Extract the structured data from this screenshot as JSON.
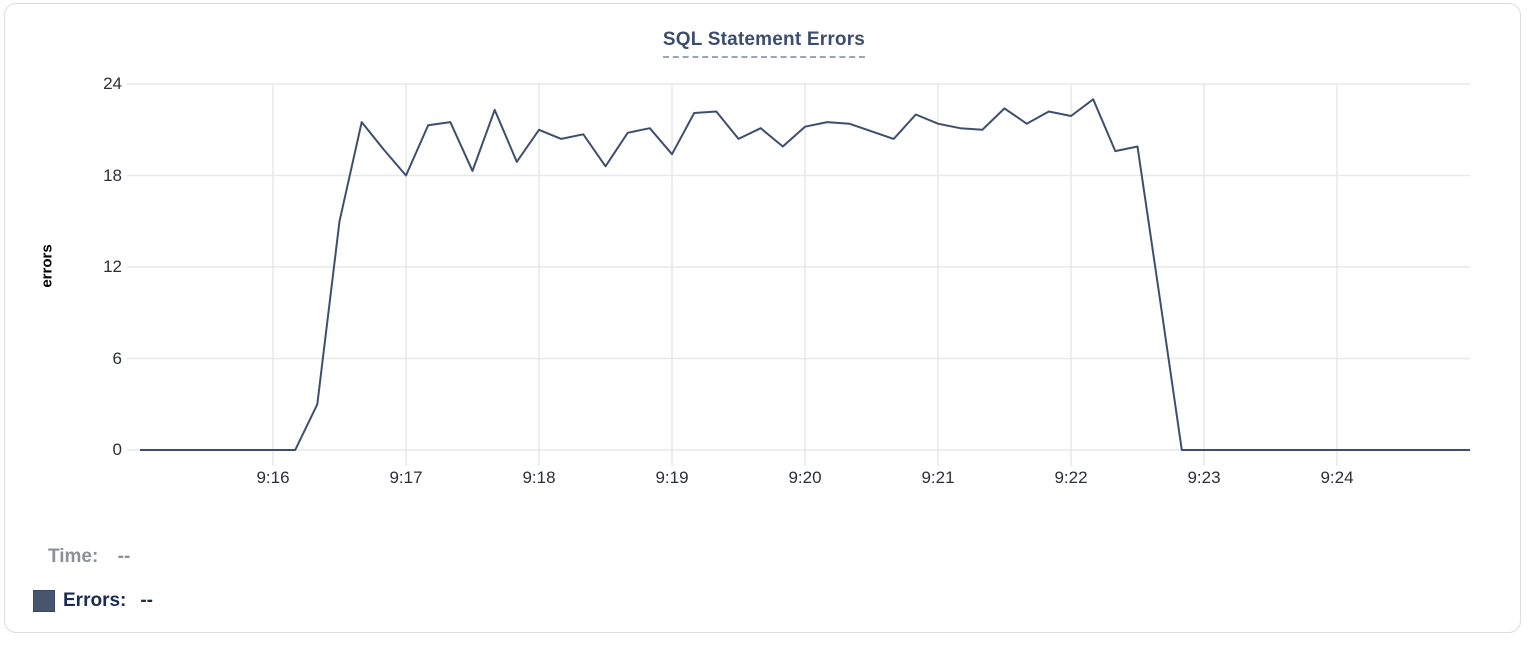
{
  "colors": {
    "card_border": "#dcdcde",
    "title": "#3c4d6e",
    "title_underline": "#97a5c2",
    "line": "#3e4f6e",
    "grid": "#e7e8ea",
    "tick_text": "#2b2f36",
    "swatch": "#47566e",
    "legend_time": "#8b9198",
    "legend_errors": "#1c2b52"
  },
  "legend": {
    "time_label": "Time:",
    "time_value": "--",
    "errors_label": "Errors:",
    "errors_value": "--"
  },
  "chart_data": {
    "type": "line",
    "title": "SQL Statement Errors",
    "xlabel": "",
    "ylabel": "errors",
    "ylim": [
      0,
      24
    ],
    "y_ticks": [
      0,
      6,
      12,
      18,
      24
    ],
    "x_tick_labels": [
      "9:16",
      "9:17",
      "9:18",
      "9:19",
      "9:20",
      "9:21",
      "9:22",
      "9:23",
      "9:24"
    ],
    "x_domain": [
      "9:15:00",
      "9:25:00"
    ],
    "sample_interval_seconds": 10,
    "grid": true,
    "legend_position": "bottom-left",
    "series": [
      {
        "name": "Errors",
        "times": [
          "9:15:00",
          "9:15:10",
          "9:15:20",
          "9:15:30",
          "9:15:40",
          "9:15:50",
          "9:16:00",
          "9:16:10",
          "9:16:20",
          "9:16:30",
          "9:16:40",
          "9:16:50",
          "9:17:00",
          "9:17:10",
          "9:17:20",
          "9:17:30",
          "9:17:40",
          "9:17:50",
          "9:18:00",
          "9:18:10",
          "9:18:20",
          "9:18:30",
          "9:18:40",
          "9:18:50",
          "9:19:00",
          "9:19:10",
          "9:19:20",
          "9:19:30",
          "9:19:40",
          "9:19:50",
          "9:20:00",
          "9:20:10",
          "9:20:20",
          "9:20:30",
          "9:20:40",
          "9:20:50",
          "9:21:00",
          "9:21:10",
          "9:21:20",
          "9:21:30",
          "9:21:40",
          "9:21:50",
          "9:22:00",
          "9:22:10",
          "9:22:20",
          "9:22:30",
          "9:22:40",
          "9:22:50",
          "9:23:00",
          "9:23:10",
          "9:23:20",
          "9:23:30",
          "9:23:40",
          "9:23:50",
          "9:24:00",
          "9:24:10",
          "9:24:20",
          "9:24:30",
          "9:24:40",
          "9:24:50",
          "9:25:00"
        ],
        "values": [
          0,
          0,
          0,
          0,
          0,
          0,
          0,
          0,
          3,
          15,
          21.5,
          19.7,
          18,
          21.3,
          21.5,
          18.3,
          22.3,
          18.9,
          21,
          20.4,
          20.7,
          18.6,
          20.8,
          21.1,
          19.4,
          22.1,
          22.2,
          20.4,
          21.1,
          19.9,
          21.2,
          21.5,
          21.4,
          20.9,
          20.4,
          22,
          21.4,
          21.1,
          21,
          22.4,
          21.4,
          22.2,
          21.9,
          23,
          19.6,
          19.9,
          10,
          0,
          0,
          0,
          0,
          0,
          0,
          0,
          0,
          0,
          0,
          0,
          0,
          0,
          0
        ]
      }
    ]
  }
}
